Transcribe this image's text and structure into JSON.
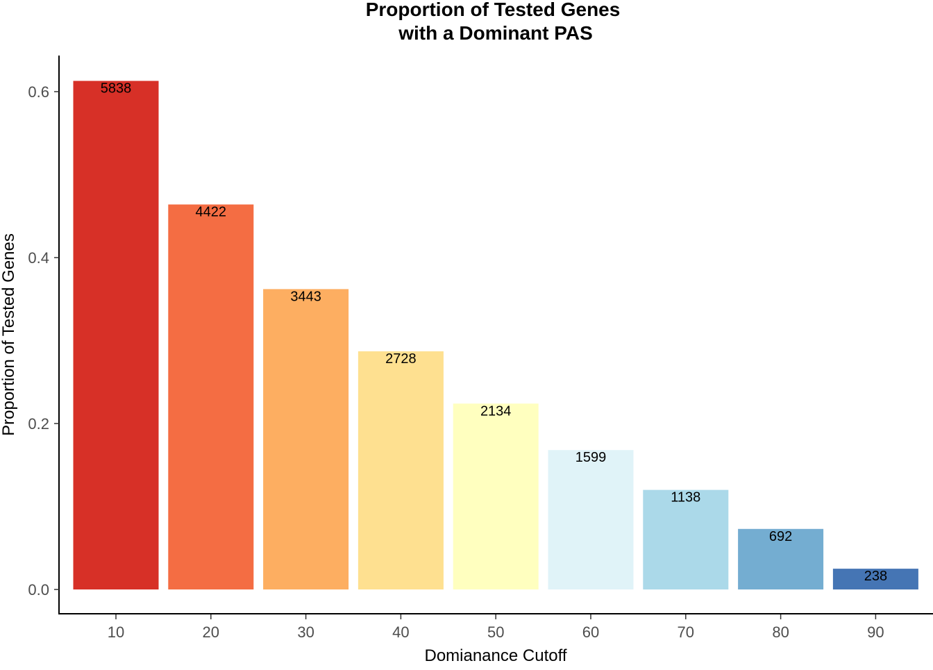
{
  "chart_data": {
    "type": "bar",
    "title_line1": "Proportion of Tested Genes",
    "title_line2": "with a Dominant PAS",
    "xlabel": "Domianance Cutoff",
    "ylabel": "Proportion of Tested Genes",
    "categories": [
      "10",
      "20",
      "30",
      "40",
      "50",
      "60",
      "70",
      "80",
      "90"
    ],
    "values": [
      0.613,
      0.464,
      0.362,
      0.287,
      0.224,
      0.168,
      0.12,
      0.073,
      0.025
    ],
    "data_labels": [
      "5838",
      "4422",
      "3443",
      "2728",
      "2134",
      "1599",
      "1138",
      "692",
      "238"
    ],
    "colors": [
      "#d73027",
      "#f46d43",
      "#fdae61",
      "#fee090",
      "#ffffbf",
      "#e0f3f8",
      "#abd9e9",
      "#74add1",
      "#4575b4"
    ],
    "yticks": [
      0.0,
      0.2,
      0.4,
      0.6
    ],
    "ytick_labels": [
      "0.0",
      "0.2",
      "0.4",
      "0.6"
    ],
    "ylim": [
      -0.03,
      0.645
    ],
    "grid": false,
    "legend": "none"
  }
}
